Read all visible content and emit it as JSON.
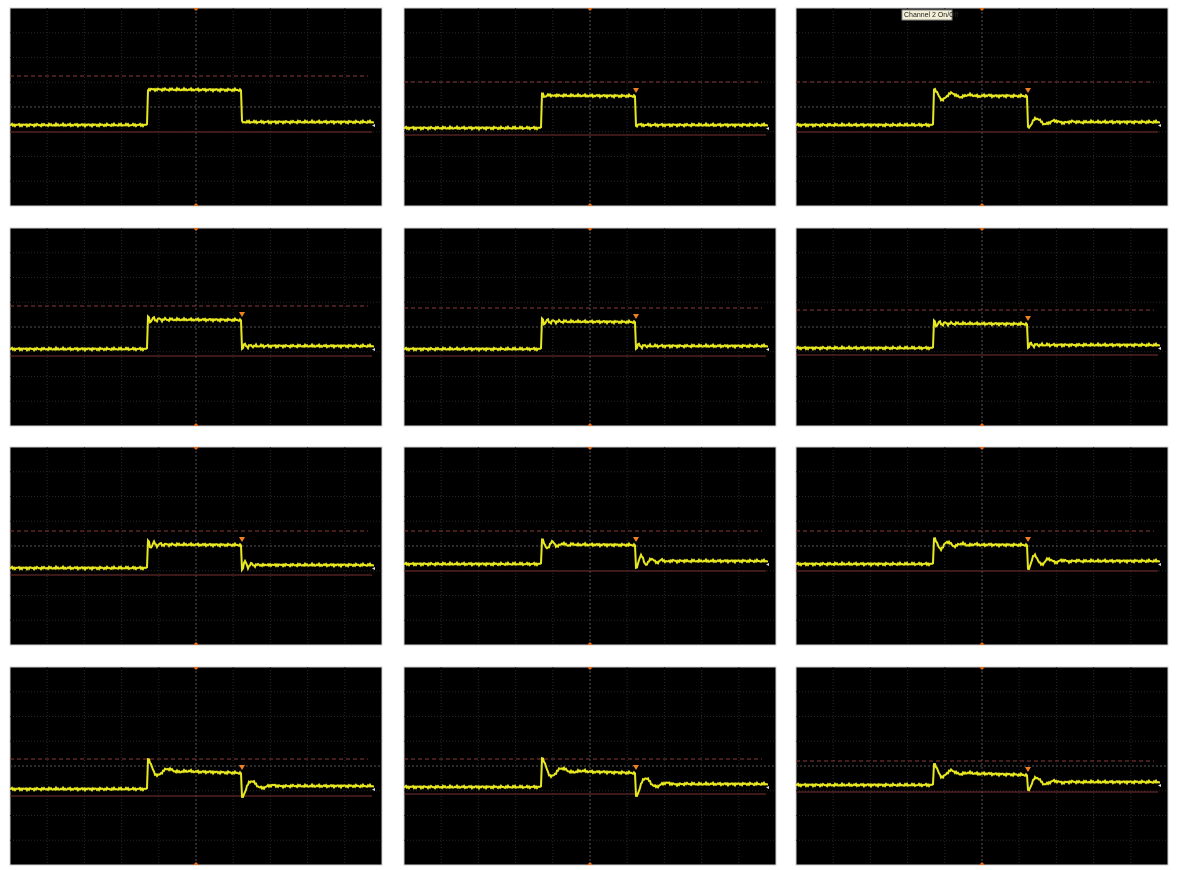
{
  "screen": {
    "tooltip": "Channel 2 On/Off"
  }
}
